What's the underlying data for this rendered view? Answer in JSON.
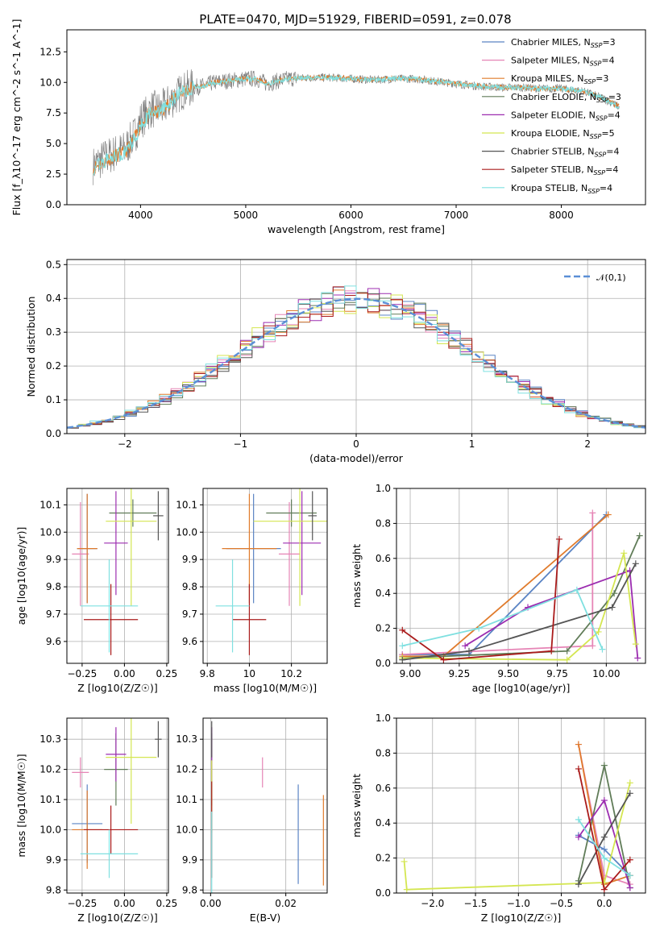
{
  "figure": {
    "title": "PLATE=0470, MJD=51929, FIBERID=0591, z=0.078"
  },
  "series": [
    {
      "name": "Chabrier MILES, N_SSP=3",
      "label": "Chabrier MILES, N",
      "sub": "SSP",
      "suffix": "=3",
      "color": "#5b84c4"
    },
    {
      "name": "Salpeter MILES, N_SSP=4",
      "label": "Salpeter MILES, N",
      "sub": "SSP",
      "suffix": "=4",
      "color": "#e685b6"
    },
    {
      "name": "Kroupa MILES, N_SSP=3",
      "label": "Kroupa MILES, N",
      "sub": "SSP",
      "suffix": "=3",
      "color": "#e07b2c"
    },
    {
      "name": "Chabrier ELODIE, N_SSP=3",
      "label": "Chabrier ELODIE, N",
      "sub": "SSP",
      "suffix": "=3",
      "color": "#607c58"
    },
    {
      "name": "Salpeter ELODIE, N_SSP=4",
      "label": "Salpeter ELODIE, N",
      "sub": "SSP",
      "suffix": "=4",
      "color": "#9c2db0"
    },
    {
      "name": "Kroupa ELODIE, N_SSP=5",
      "label": "Kroupa ELODIE, N",
      "sub": "SSP",
      "suffix": "=5",
      "color": "#d4e651"
    },
    {
      "name": "Chabrier STELIB, N_SSP=4",
      "label": "Chabrier STELIB, N",
      "sub": "SSP",
      "suffix": "=4",
      "color": "#555555"
    },
    {
      "name": "Salpeter STELIB, N_SSP=4",
      "label": "Salpeter STELIB, N",
      "sub": "SSP",
      "suffix": "=4",
      "color": "#aa1b1b"
    },
    {
      "name": "Kroupa STELIB, N_SSP=4",
      "label": "Kroupa STELIB, N",
      "sub": "SSP",
      "suffix": "=4",
      "color": "#7fe0e0"
    }
  ],
  "chart_data": [
    {
      "id": "spectrum",
      "type": "line",
      "xlabel": "wavelength [Angstrom, rest frame]",
      "ylabel": "Flux [f_λ10^-17 erg cm^-2 s^-1 A^-1]",
      "xlim": [
        3300,
        8800
      ],
      "ylim": [
        0,
        14.3
      ],
      "xticks": [
        4000,
        5000,
        6000,
        7000,
        8000
      ],
      "yticks": [
        0.0,
        2.5,
        5.0,
        7.5,
        10.0,
        12.5
      ],
      "grid": false,
      "legend": "upper right",
      "data_color": "#777777",
      "model_colors": [
        "#e07b2c",
        "#7fe0e0"
      ],
      "data": [
        [
          3550,
          3.2
        ],
        [
          3650,
          3.8
        ],
        [
          3750,
          4.2
        ],
        [
          3850,
          4.5
        ],
        [
          3950,
          5.8
        ],
        [
          4000,
          6.9
        ],
        [
          4100,
          7.8
        ],
        [
          4200,
          7.8
        ],
        [
          4300,
          8.6
        ],
        [
          4400,
          9.3
        ],
        [
          4500,
          9.6
        ],
        [
          4600,
          9.7
        ],
        [
          4700,
          10.0
        ],
        [
          4800,
          10.1
        ],
        [
          4900,
          10.2
        ],
        [
          5000,
          10.3
        ],
        [
          5100,
          10.3
        ],
        [
          5200,
          9.9
        ],
        [
          5300,
          10.1
        ],
        [
          5400,
          10.3
        ],
        [
          5600,
          10.4
        ],
        [
          5800,
          10.4
        ],
        [
          6000,
          10.3
        ],
        [
          6200,
          10.2
        ],
        [
          6400,
          10.3
        ],
        [
          6600,
          10.3
        ],
        [
          6800,
          10.1
        ],
        [
          7000,
          9.9
        ],
        [
          7200,
          9.7
        ],
        [
          7400,
          9.6
        ],
        [
          7600,
          9.6
        ],
        [
          7800,
          9.5
        ],
        [
          8000,
          9.5
        ],
        [
          8200,
          9.3
        ],
        [
          8400,
          8.7
        ],
        [
          8550,
          8.0
        ]
      ],
      "model": [
        [
          3550,
          3.0
        ],
        [
          3650,
          3.5
        ],
        [
          3750,
          4.0
        ],
        [
          3850,
          4.2
        ],
        [
          3950,
          5.5
        ],
        [
          4000,
          6.6
        ],
        [
          4100,
          7.5
        ],
        [
          4200,
          7.6
        ],
        [
          4300,
          8.6
        ],
        [
          4400,
          9.3
        ],
        [
          4500,
          9.6
        ],
        [
          4600,
          9.7
        ],
        [
          4700,
          10.0
        ],
        [
          4800,
          10.1
        ],
        [
          4900,
          10.2
        ],
        [
          5000,
          10.3
        ],
        [
          5100,
          10.3
        ],
        [
          5200,
          9.9
        ],
        [
          5300,
          10.1
        ],
        [
          5400,
          10.3
        ],
        [
          5600,
          10.4
        ],
        [
          5800,
          10.4
        ],
        [
          6000,
          10.3
        ],
        [
          6200,
          10.2
        ],
        [
          6400,
          10.3
        ],
        [
          6600,
          10.3
        ],
        [
          6800,
          10.1
        ],
        [
          7000,
          9.9
        ],
        [
          7200,
          9.7
        ],
        [
          7400,
          9.6
        ],
        [
          7600,
          9.6
        ],
        [
          7800,
          9.5
        ],
        [
          8000,
          9.5
        ],
        [
          8200,
          9.3
        ],
        [
          8400,
          8.7
        ],
        [
          8550,
          8.0
        ]
      ]
    },
    {
      "id": "residuals",
      "type": "line",
      "xlabel": "(data-model)/error",
      "ylabel": "Normed distribution",
      "xlim": [
        -2.5,
        2.5
      ],
      "ylim": [
        0,
        0.515
      ],
      "xticks": [
        -2,
        -1,
        0,
        1,
        2
      ],
      "xtick_labels": [
        "−2",
        "−1",
        "0",
        "1",
        "2"
      ],
      "yticks": [
        0.0,
        0.1,
        0.2,
        0.3,
        0.4,
        0.5
      ],
      "grid": true,
      "legend": "upper right",
      "bin_width": 0.1,
      "gauss_label": "𝒩(0,1)",
      "gauss_color": "#5b8fd6"
    },
    {
      "id": "age-vs-Z",
      "type": "scatter",
      "xlabel": "Z [log10(Z/Z☉)]",
      "ylabel": "age  [log10(age/yr)]",
      "xlim": [
        -0.34,
        0.26
      ],
      "ylim": [
        9.52,
        10.16
      ],
      "xticks": [
        -0.25,
        0.0,
        0.25
      ],
      "xtick_labels": [
        "−0.25",
        "0.00",
        "0.25"
      ],
      "yticks": [
        9.6,
        9.7,
        9.8,
        9.9,
        10.0,
        10.1
      ],
      "grid": true,
      "points": [
        {
          "x": -0.22,
          "xerr": 0.06,
          "y": 9.94,
          "yerr": 0.2
        },
        {
          "x": -0.26,
          "xerr": 0.05,
          "y": 9.92,
          "yerr": 0.19
        },
        {
          "x": -0.22,
          "xerr": 0.06,
          "y": 9.94,
          "yerr": 0.2
        },
        {
          "x": 0.05,
          "xerr": 0.14,
          "y": 10.07,
          "yerr": 0.05
        },
        {
          "x": -0.05,
          "xerr": 0.07,
          "y": 9.96,
          "yerr": 0.19
        },
        {
          "x": 0.04,
          "xerr": 0.15,
          "y": 10.04,
          "yerr": 0.31
        },
        {
          "x": 0.2,
          "xerr": 0.03,
          "y": 10.06,
          "yerr": 0.09
        },
        {
          "x": -0.08,
          "xerr": 0.16,
          "y": 9.68,
          "yerr": 0.13
        },
        {
          "x": -0.09,
          "xerr": 0.17,
          "y": 9.73,
          "yerr": 0.17
        }
      ]
    },
    {
      "id": "age-vs-mass",
      "type": "scatter",
      "xlabel": "mass [log10(M/M☉)]",
      "ylabel": "",
      "xlim": [
        9.78,
        10.37
      ],
      "ylim": [
        9.52,
        10.16
      ],
      "xticks": [
        9.8,
        10.0,
        10.2
      ],
      "yticks": [
        9.6,
        9.7,
        9.8,
        9.9,
        10.0,
        10.1
      ],
      "grid": true,
      "points": [
        {
          "x": 10.02,
          "xerr": 0.13,
          "y": 9.94,
          "yerr": 0.2
        },
        {
          "x": 10.19,
          "xerr": 0.05,
          "y": 9.92,
          "yerr": 0.19
        },
        {
          "x": 10.0,
          "xerr": 0.13,
          "y": 9.94,
          "yerr": 0.2
        },
        {
          "x": 10.2,
          "xerr": 0.12,
          "y": 10.07,
          "yerr": 0.05
        },
        {
          "x": 10.25,
          "xerr": 0.09,
          "y": 9.96,
          "yerr": 0.19
        },
        {
          "x": 10.24,
          "xerr": 0.22,
          "y": 10.04,
          "yerr": 0.31
        },
        {
          "x": 10.3,
          "xerr": 0.02,
          "y": 10.06,
          "yerr": 0.09
        },
        {
          "x": 10.0,
          "xerr": 0.08,
          "y": 9.68,
          "yerr": 0.13
        },
        {
          "x": 9.92,
          "xerr": 0.08,
          "y": 9.73,
          "yerr": 0.17
        }
      ]
    },
    {
      "id": "mass-weight-vs-age",
      "type": "line",
      "xlabel": "age  [log10(age/yr)]",
      "ylabel": "mass weight",
      "xlim": [
        8.93,
        10.2
      ],
      "ylim": [
        0,
        1.0
      ],
      "xticks": [
        9.0,
        9.25,
        9.5,
        9.75,
        10.0
      ],
      "xtick_labels": [
        "9.00",
        "9.25",
        "9.50",
        "9.75",
        "10.00"
      ],
      "yticks": [
        0.0,
        0.2,
        0.4,
        0.6,
        0.8,
        1.0
      ],
      "grid": true,
      "lines": [
        [
          [
            8.96,
            0.05
          ],
          [
            9.3,
            0.05
          ],
          [
            10.0,
            0.85
          ]
        ],
        [
          [
            8.96,
            0.05
          ],
          [
            9.93,
            0.1
          ],
          [
            9.93,
            0.86
          ]
        ],
        [
          [
            8.96,
            0.04
          ],
          [
            9.17,
            0.04
          ],
          [
            10.01,
            0.85
          ]
        ],
        [
          [
            8.96,
            0.03
          ],
          [
            9.8,
            0.07
          ],
          [
            10.04,
            0.4
          ],
          [
            10.17,
            0.73
          ]
        ],
        [
          [
            9.28,
            0.1
          ],
          [
            9.6,
            0.32
          ],
          [
            10.12,
            0.53
          ],
          [
            10.16,
            0.03
          ]
        ],
        [
          [
            8.96,
            0.03
          ],
          [
            9.8,
            0.02
          ],
          [
            9.96,
            0.18
          ],
          [
            10.09,
            0.63
          ],
          [
            10.15,
            0.11
          ]
        ],
        [
          [
            8.96,
            0.02
          ],
          [
            9.3,
            0.07
          ],
          [
            10.03,
            0.32
          ],
          [
            10.15,
            0.57
          ]
        ],
        [
          [
            8.96,
            0.19
          ],
          [
            9.17,
            0.02
          ],
          [
            9.72,
            0.07
          ],
          [
            9.76,
            0.71
          ]
        ],
        [
          [
            8.96,
            0.1
          ],
          [
            9.35,
            0.2
          ],
          [
            9.85,
            0.42
          ],
          [
            9.98,
            0.08
          ]
        ]
      ]
    },
    {
      "id": "mass-vs-Z",
      "type": "scatter",
      "xlabel": "Z [log10(Z/Z☉)]",
      "ylabel": "mass [log10(M/M☉)]",
      "xlim": [
        -0.34,
        0.26
      ],
      "ylim": [
        9.79,
        10.37
      ],
      "xticks": [
        -0.25,
        0.0,
        0.25
      ],
      "xtick_labels": [
        "−0.25",
        "0.00",
        "0.25"
      ],
      "yticks": [
        9.8,
        9.9,
        10.0,
        10.1,
        10.2,
        10.3
      ],
      "grid": true,
      "points": [
        {
          "x": -0.22,
          "xerr": 0.09,
          "y": 10.02,
          "yerr": 0.13
        },
        {
          "x": -0.26,
          "xerr": 0.05,
          "y": 10.19,
          "yerr": 0.05
        },
        {
          "x": -0.22,
          "xerr": 0.09,
          "y": 10.0,
          "yerr": 0.13
        },
        {
          "x": -0.05,
          "xerr": 0.07,
          "y": 10.2,
          "yerr": 0.12
        },
        {
          "x": -0.05,
          "xerr": 0.06,
          "y": 10.25,
          "yerr": 0.09
        },
        {
          "x": 0.04,
          "xerr": 0.15,
          "y": 10.24,
          "yerr": 0.22
        },
        {
          "x": 0.2,
          "xerr": 0.02,
          "y": 10.3,
          "yerr": 0.06
        },
        {
          "x": -0.08,
          "xerr": 0.16,
          "y": 10.0,
          "yerr": 0.08
        },
        {
          "x": -0.09,
          "xerr": 0.17,
          "y": 9.92,
          "yerr": 0.08
        }
      ]
    },
    {
      "id": "ebv",
      "type": "scatter",
      "xlabel": "E(B-V)",
      "ylabel": "",
      "xlim": [
        -0.002,
        0.031
      ],
      "ylim": [
        9.79,
        10.37
      ],
      "xticks": [
        0.0,
        0.02
      ],
      "xtick_labels": [
        "0.00",
        "0.02"
      ],
      "yticks": [
        9.8,
        9.9,
        10.0,
        10.1,
        10.2,
        10.3
      ],
      "grid": true,
      "points": [
        {
          "x": 0.0233,
          "y": 9.985,
          "yerr": 0.165
        },
        {
          "x": 0.0138,
          "y": 10.19,
          "yerr": 0.05
        },
        {
          "x": 0.03,
          "y": 9.965,
          "yerr": 0.15
        },
        {
          "x": 0.0003,
          "y": 10.2,
          "yerr": 0.12
        },
        {
          "x": 0.0003,
          "y": 10.25,
          "yerr": 0.09
        },
        {
          "x": 0.0003,
          "y": 10.11,
          "yerr": 0.12
        },
        {
          "x": 0.0003,
          "y": 10.3,
          "yerr": 0.06
        },
        {
          "x": 0.0003,
          "y": 10.0,
          "yerr": 0.16
        },
        {
          "x": 0.0003,
          "y": 9.92,
          "yerr": 0.14
        }
      ]
    },
    {
      "id": "mass-weight-vs-Z",
      "type": "line",
      "xlabel": "Z [log10(Z/Z☉)]",
      "ylabel": "mass weight",
      "xlim": [
        -2.42,
        0.48
      ],
      "ylim": [
        0,
        1.0
      ],
      "xticks": [
        -2.0,
        -1.5,
        -1.0,
        -0.5,
        0.0
      ],
      "xtick_labels": [
        "−2.0",
        "−1.5",
        "−1.0",
        "−0.5",
        "0.0"
      ],
      "yticks": [
        0.0,
        0.2,
        0.4,
        0.6,
        0.8,
        1.0
      ],
      "grid": true,
      "lines": [
        [
          [
            -0.3,
            0.33
          ],
          [
            0.0,
            0.25
          ],
          [
            0.3,
            0.1
          ]
        ],
        [
          [
            -0.3,
            0.85
          ],
          [
            0.0,
            0.1
          ],
          [
            0.3,
            0.05
          ]
        ],
        [
          [
            -0.3,
            0.85
          ],
          [
            0.0,
            0.05
          ],
          [
            0.3,
            0.1
          ]
        ],
        [
          [
            -0.3,
            0.07
          ],
          [
            0.0,
            0.73
          ],
          [
            0.3,
            0.03
          ]
        ],
        [
          [
            -0.3,
            0.32
          ],
          [
            0.0,
            0.53
          ],
          [
            0.3,
            0.03
          ]
        ],
        [
          [
            -2.33,
            0.18
          ],
          [
            -2.3,
            0.02
          ],
          [
            0.0,
            0.06
          ],
          [
            0.3,
            0.63
          ]
        ],
        [
          [
            -0.3,
            0.05
          ],
          [
            0.0,
            0.32
          ],
          [
            0.3,
            0.57
          ]
        ],
        [
          [
            -0.3,
            0.71
          ],
          [
            0.0,
            0.02
          ],
          [
            0.3,
            0.19
          ]
        ],
        [
          [
            -0.3,
            0.42
          ],
          [
            0.0,
            0.2
          ],
          [
            0.3,
            0.1
          ]
        ]
      ]
    }
  ]
}
